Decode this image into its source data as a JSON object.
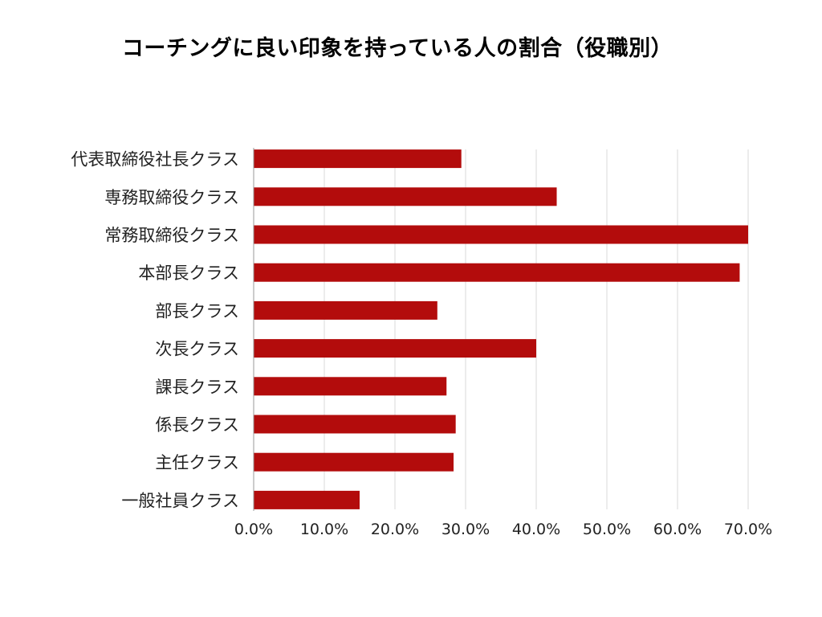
{
  "chart_data": {
    "type": "bar",
    "orientation": "horizontal",
    "title": "コーチングに良い印象を持っている人の割合（役職別）",
    "xlabel": "",
    "ylabel": "",
    "categories": [
      "代表取締役社長クラス",
      "専務取締役クラス",
      "常務取締役クラス",
      "本部長クラス",
      "部長クラス",
      "次長クラス",
      "課長クラス",
      "係長クラス",
      "主任クラス",
      "一般社員クラス"
    ],
    "values": [
      29.4,
      42.9,
      70.0,
      68.8,
      26.0,
      40.0,
      27.3,
      28.6,
      28.3,
      15.0
    ],
    "xlim": [
      0,
      70
    ],
    "ticks": [
      "0.0%",
      "10.0%",
      "20.0%",
      "30.0%",
      "40.0%",
      "50.0%",
      "60.0%",
      "70.0%"
    ],
    "grid": true,
    "bar_color": "#b30c0c",
    "grid_color": "#d9d9d9",
    "axis_color": "#999999"
  }
}
